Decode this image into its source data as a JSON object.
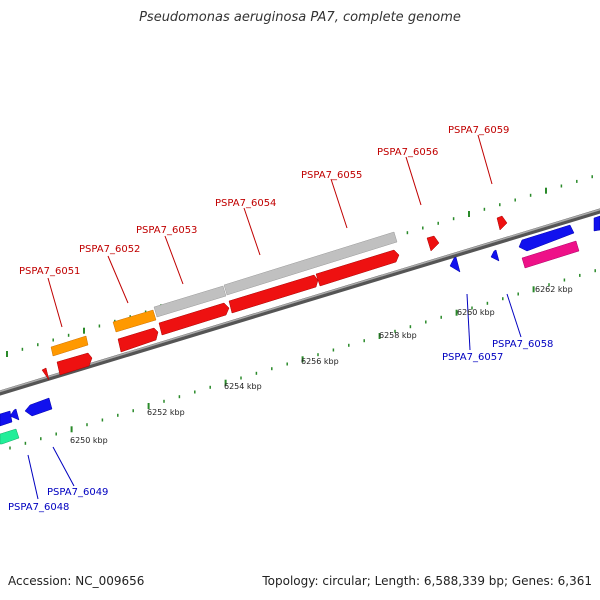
{
  "title": "Pseudomonas aeruginosa PA7, complete genome",
  "footer": {
    "accession": "Accession: NC_009656",
    "summary": "Topology: circular; Length: 6,588,339 bp; Genes: 6,361"
  },
  "colors": {
    "backbone": "#888888",
    "tick": "#2a8a2a",
    "cds_red": "#ee1111",
    "cds_orange": "#ff9900",
    "cds_gray": "#c0c0c0",
    "cds_blue": "#1111ee",
    "cds_pink": "#ee1188",
    "cds_green": "#22ee99",
    "label_top": "#c00000",
    "label_bottom": "#0000c0"
  },
  "tick_labels": [
    "6250 kbp",
    "6252 kbp",
    "6254 kbp",
    "6256 kbp",
    "6258 kbp",
    "6260 kbp",
    "6262 kbp"
  ],
  "genes_top": [
    "PSPA7_6051",
    "PSPA7_6052",
    "PSPA7_6053",
    "PSPA7_6054",
    "PSPA7_6055",
    "PSPA7_6056",
    "PSPA7_6059"
  ],
  "genes_bottom": [
    "PSPA7_6048",
    "PSPA7_6049",
    "PSPA7_6057",
    "PSPA7_6058"
  ]
}
